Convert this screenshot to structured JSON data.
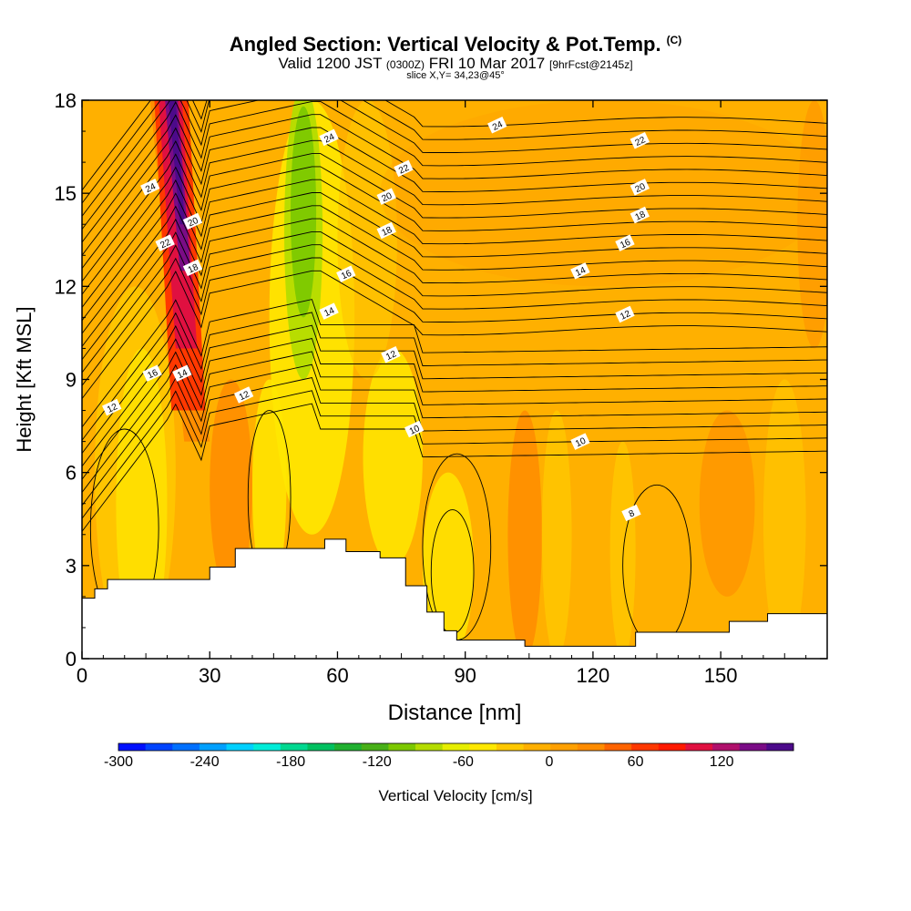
{
  "title": {
    "main": "Angled Section: Vertical Velocity & Pot.Temp.",
    "copyright": "(C)",
    "valid_prefix": "Valid 1200 JST",
    "valid_utc": "(0300Z)",
    "valid_date": "FRI 10 Mar 2017",
    "forecast": "[9hrFcst@2145z]",
    "slice": "slice X,Y= 34,23@45°"
  },
  "chart_data": {
    "type": "heatmap",
    "xlabel": "Distance [nm]",
    "ylabel": "Height [Kft MSL]",
    "xlim": [
      0,
      175
    ],
    "ylim": [
      0,
      18
    ],
    "x_ticks": [
      0,
      30,
      60,
      90,
      120,
      150
    ],
    "y_ticks": [
      0,
      3,
      6,
      9,
      12,
      15,
      18
    ],
    "colorbar": {
      "label": "Vertical Velocity [cm/s]",
      "tick_labels": [
        "-300",
        "-240",
        "-180",
        "-120",
        "-60",
        "0",
        "60",
        "120"
      ],
      "tick_values": [
        -300,
        -240,
        -180,
        -120,
        -60,
        0,
        60,
        120
      ],
      "range": [
        -300,
        150
      ],
      "step": 20,
      "colors": [
        "#0010ff",
        "#0044ff",
        "#0070ff",
        "#00a0ff",
        "#00d0ff",
        "#00ecd8",
        "#00d890",
        "#00c060",
        "#20b030",
        "#48b018",
        "#7cc800",
        "#b4dc00",
        "#e6ee00",
        "#ffe800",
        "#ffc800",
        "#ffb000",
        "#ffa000",
        "#ff8c00",
        "#ff6400",
        "#ff3800",
        "#ff1a00",
        "#e01040",
        "#b0106c",
        "#7a0c86",
        "#4c0a8a"
      ]
    },
    "terrain_kft": [
      [
        0,
        1.95
      ],
      [
        3,
        2.25
      ],
      [
        6,
        2.55
      ],
      [
        30,
        2.55
      ],
      [
        30,
        2.95
      ],
      [
        36,
        3.55
      ],
      [
        57,
        3.85
      ],
      [
        62,
        3.45
      ],
      [
        70,
        3.25
      ],
      [
        76,
        2.35
      ],
      [
        81,
        1.5
      ],
      [
        85,
        0.9
      ],
      [
        88,
        0.6
      ],
      [
        104,
        0.4
      ],
      [
        129,
        0.4
      ],
      [
        130,
        0.85
      ],
      [
        143,
        0.85
      ],
      [
        152,
        1.2
      ],
      [
        161,
        1.45
      ],
      [
        175,
        1.65
      ]
    ],
    "contours_theta": {
      "label": "Pot.Temp. (°C)",
      "levels": [
        8,
        10,
        12,
        14,
        16,
        18,
        20,
        22,
        24
      ],
      "labels_shown": [
        "24",
        "22",
        "20",
        "18",
        "16",
        "14",
        "12",
        "10",
        "8"
      ]
    },
    "updraft_core": {
      "x_range": [
        17,
        29
      ],
      "y_range": [
        8,
        18
      ],
      "max_cm_s": 150
    },
    "downdraft_core": {
      "x_range": [
        48,
        56
      ],
      "y_range": [
        9,
        18
      ],
      "min_cm_s": -120
    }
  }
}
